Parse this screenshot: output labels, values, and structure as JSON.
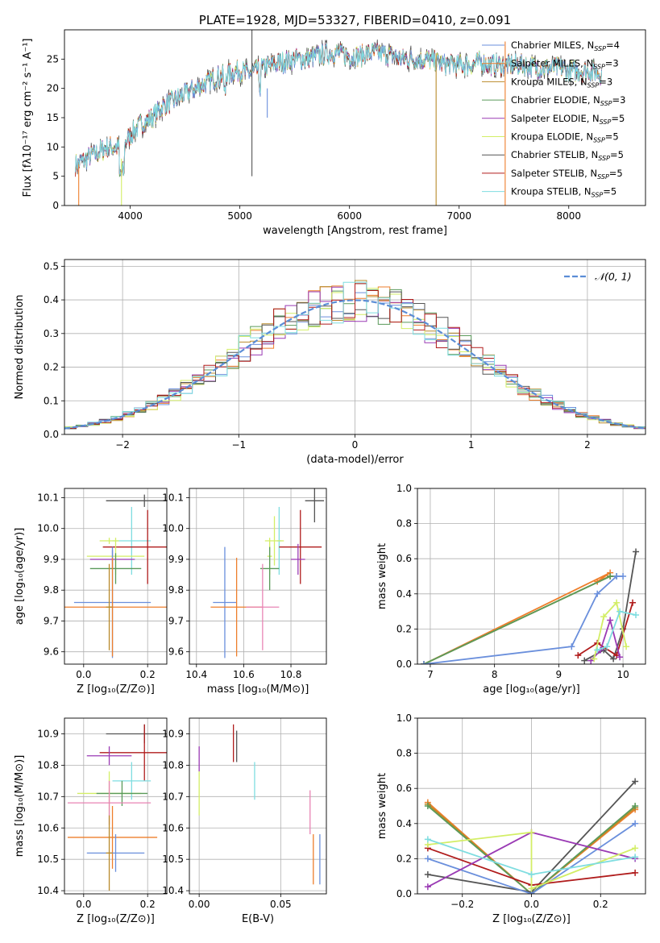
{
  "colors": {
    "chabrier_miles": "#6a8fdc",
    "salpeter_miles": "#ee7e2b",
    "kroupa_miles": "#b98a2a",
    "chabrier_elodie": "#5a9a5a",
    "salpeter_elodie": "#9a3ab4",
    "kroupa_elodie": "#d3ee66",
    "chabrier_stelib": "#555555",
    "salpeter_stelib": "#b01c1c",
    "kroupa_stelib": "#7fdde0",
    "pink": "#e884b4",
    "normal": "#5b8dd6"
  },
  "chart_data": [
    {
      "id": "spectrum",
      "type": "line",
      "title": "PLATE=1928, MJD=53327, FIBERID=0410, z=0.091",
      "xlabel": "wavelength [Angstrom, rest frame]",
      "ylabel": "Flux [fλ10⁻¹⁷ erg cm⁻² s⁻¹ A⁻¹]",
      "xlim": [
        3400,
        8700
      ],
      "ylim": [
        0,
        30
      ],
      "xticks": [
        "4000",
        "5000",
        "6000",
        "7000",
        "8000"
      ],
      "yticks": [
        "0",
        "5",
        "10",
        "15",
        "20",
        "25"
      ],
      "legend": [
        "Chabrier MILES, N_SSP=4",
        "Salpeter MILES, N_SSP=3",
        "Kroupa MILES, N_SSP=3",
        "Chabrier ELODIE, N_SSP=3",
        "Salpeter ELODIE, N_SSP=5",
        "Kroupa ELODIE, N_SSP=5",
        "Chabrier STELIB, N_SSP=5",
        "Salpeter STELIB, N_SSP=5",
        "Kroupa STELIB, N_SSP=5"
      ],
      "legend_position": "top-right",
      "envelope_x": [
        3500,
        3600,
        3700,
        3800,
        3900,
        4000,
        4100,
        4200,
        4300,
        4400,
        4500,
        4600,
        4700,
        4800,
        4900,
        5000,
        5100,
        5200,
        5300,
        5400,
        5500,
        5600,
        5700,
        5800,
        5900,
        6000,
        6100,
        6200,
        6300,
        6400,
        6500,
        6600,
        6700,
        6800,
        6900,
        7000,
        7100,
        7200,
        7300,
        7400,
        7500,
        7600,
        7700,
        7800,
        7900,
        8000,
        8100,
        8200,
        8300
      ],
      "envelope_y": [
        7,
        8,
        9,
        10,
        10,
        12,
        14,
        15,
        17,
        18,
        19,
        20,
        21,
        22,
        22.5,
        23,
        22.5,
        23.5,
        24,
        24.5,
        25,
        25,
        25.5,
        26,
        26,
        25.5,
        25.5,
        26,
        26,
        25.5,
        25,
        25,
        25,
        24.5,
        24,
        24,
        24,
        24.5,
        24,
        24,
        24,
        24,
        23.5,
        23.5,
        23.5,
        23,
        23,
        23,
        22.5
      ]
    },
    {
      "id": "residuals",
      "type": "bar",
      "xlabel": "(data-model)/error",
      "ylabel": "Normed distribution",
      "xlim": [
        -2.5,
        2.5
      ],
      "ylim": [
        0,
        0.52
      ],
      "xticks": [
        "−2",
        "−1",
        "0",
        "1",
        "2"
      ],
      "yticks": [
        "0.0",
        "0.1",
        "0.2",
        "0.3",
        "0.4",
        "0.5"
      ],
      "legend": [
        "𝒩(0, 1)"
      ],
      "legend_position": "top-right",
      "bin_width": 0.1
    },
    {
      "id": "age-vs-z",
      "type": "scatter",
      "xlabel": "Z [log₁₀(Z/Z⊙)]",
      "ylabel": "age  [log₁₀(age/yr)]",
      "xlim": [
        -0.06,
        0.26
      ],
      "ylim": [
        9.56,
        10.13
      ],
      "xticks": [
        "0.0",
        "0.2"
      ],
      "yticks": [
        "9.6",
        "9.7",
        "9.8",
        "9.9",
        "10.0",
        "10.1"
      ],
      "points": [
        {
          "c": "kroupa_stelib",
          "x": 0.15,
          "y": 9.96,
          "xerr": 0.06,
          "yerr": 0.11
        },
        {
          "c": "chabrier_stelib",
          "x": 0.19,
          "y": 10.09,
          "xerr": 0.12,
          "yerr": 0.02
        },
        {
          "c": "salpeter_stelib",
          "x": 0.2,
          "y": 9.94,
          "xerr": 0.14,
          "yerr": 0.12
        },
        {
          "c": "kroupa_elodie",
          "x": 0.08,
          "y": 9.96,
          "xerr": 0.03,
          "yerr": 0.01
        },
        {
          "c": "kroupa_elodie",
          "x": 0.1,
          "y": 9.91,
          "xerr": 0.09,
          "yerr": 0.06
        },
        {
          "c": "salpeter_elodie",
          "x": 0.09,
          "y": 9.9,
          "xerr": 0.07,
          "yerr": 0.03
        },
        {
          "c": "chabrier_elodie",
          "x": 0.1,
          "y": 9.87,
          "xerr": 0.08,
          "yerr": 0.05
        },
        {
          "c": "chabrier_miles",
          "x": 0.09,
          "y": 9.76,
          "xerr": 0.12,
          "yerr": 0.18
        },
        {
          "c": "salpeter_miles",
          "x": 0.09,
          "y": 9.745,
          "xerr": 0.2,
          "yerr": 0.16
        },
        {
          "c": "kroupa_miles",
          "x": 0.08,
          "y": 9.745,
          "xerr": 0.01,
          "yerr": 0.14
        }
      ]
    },
    {
      "id": "age-vs-mass",
      "type": "scatter",
      "xlabel": "mass [log₁₀(M/M⊙)]",
      "ylabel": "",
      "xlim": [
        10.37,
        10.95
      ],
      "ylim": [
        9.56,
        10.13
      ],
      "xticks": [
        "10.4",
        "10.6",
        "10.8"
      ],
      "yticks": [
        "9.6",
        "9.7",
        "9.8",
        "9.9",
        "10.0",
        "10.1"
      ],
      "points": [
        {
          "c": "chabrier_stelib",
          "x": 10.9,
          "y": 10.09,
          "xerr": 0.04,
          "yerr": 0.07
        },
        {
          "c": "kroupa_stelib",
          "x": 10.75,
          "y": 9.96,
          "xerr": 0.01,
          "yerr": 0.11
        },
        {
          "c": "salpeter_stelib",
          "x": 10.84,
          "y": 9.94,
          "xerr": 0.09,
          "yerr": 0.12
        },
        {
          "c": "kroupa_elodie",
          "x": 10.73,
          "y": 9.96,
          "xerr": 0.04,
          "yerr": 0.08
        },
        {
          "c": "kroupa_elodie",
          "x": 10.71,
          "y": 9.91,
          "xerr": 0.01,
          "yerr": 0.06
        },
        {
          "c": "salpeter_elodie",
          "x": 10.83,
          "y": 9.9,
          "xerr": 0.03,
          "yerr": 0.05
        },
        {
          "c": "chabrier_elodie",
          "x": 10.71,
          "y": 9.87,
          "xerr": 0.04,
          "yerr": 0.07
        },
        {
          "c": "chabrier_miles",
          "x": 10.52,
          "y": 9.76,
          "xerr": 0.05,
          "yerr": 0.18
        },
        {
          "c": "salpeter_miles",
          "x": 10.57,
          "y": 9.745,
          "xerr": 0.11,
          "yerr": 0.16
        },
        {
          "c": "pink",
          "x": 10.68,
          "y": 9.745,
          "xerr": 0.07,
          "yerr": 0.14
        }
      ]
    },
    {
      "id": "mass-weight-vs-age",
      "type": "line",
      "xlabel": "age  [log₁₀(age/yr)]",
      "ylabel": "mass weight",
      "xlim": [
        6.8,
        10.35
      ],
      "ylim": [
        0,
        1
      ],
      "xticks": [
        "7",
        "8",
        "9",
        "10"
      ],
      "yticks": [
        "0.0",
        "0.2",
        "0.4",
        "0.6",
        "0.8",
        "1.0"
      ],
      "series": [
        {
          "c": "kroupa_miles",
          "x": [
            6.9,
            9.8
          ],
          "y": [
            0.0,
            0.5
          ]
        },
        {
          "c": "salpeter_miles",
          "x": [
            6.9,
            9.8,
            9.6,
            9.8
          ],
          "y": [
            0.0,
            0.52,
            0.47,
            0.5
          ]
        },
        {
          "c": "chabrier_elodie",
          "x": [
            6.9,
            9.8,
            9.9
          ],
          "y": [
            0.0,
            0.5,
            0.5
          ]
        },
        {
          "c": "chabrier_miles",
          "x": [
            6.9,
            9.2,
            9.6,
            9.9,
            10.0
          ],
          "y": [
            0.0,
            0.1,
            0.4,
            0.5,
            0.5
          ]
        },
        {
          "c": "chabrier_stelib",
          "x": [
            9.4,
            9.7,
            9.85,
            10.0,
            10.2
          ],
          "y": [
            0.02,
            0.08,
            0.03,
            0.2,
            0.64
          ]
        },
        {
          "c": "salpeter_stelib",
          "x": [
            9.3,
            9.6,
            9.9,
            10.15
          ],
          "y": [
            0.05,
            0.12,
            0.05,
            0.35
          ]
        },
        {
          "c": "salpeter_elodie",
          "x": [
            9.5,
            9.65,
            9.8,
            9.95
          ],
          "y": [
            0.02,
            0.08,
            0.25,
            0.04
          ]
        },
        {
          "c": "kroupa_elodie",
          "x": [
            9.55,
            9.7,
            9.9,
            10.05
          ],
          "y": [
            0.03,
            0.27,
            0.35,
            0.1
          ]
        },
        {
          "c": "kroupa_stelib",
          "x": [
            9.6,
            9.75,
            9.95,
            10.2
          ],
          "y": [
            0.08,
            0.1,
            0.3,
            0.28
          ]
        }
      ]
    },
    {
      "id": "mass-vs-z",
      "type": "scatter",
      "xlabel": "Z [log₁₀(Z/Z⊙)]",
      "ylabel": "mass [log₁₀(M/M⊙)]",
      "xlim": [
        -0.06,
        0.26
      ],
      "ylim": [
        10.39,
        10.95
      ],
      "xticks": [
        "0.0",
        "0.2"
      ],
      "yticks": [
        "10.4",
        "10.5",
        "10.6",
        "10.7",
        "10.8",
        "10.9"
      ],
      "points": [
        {
          "c": "chabrier_stelib",
          "x": 0.19,
          "y": 10.9,
          "xerr": 0.12,
          "yerr": 0.03
        },
        {
          "c": "salpeter_stelib",
          "x": 0.19,
          "y": 10.84,
          "xerr": 0.14,
          "yerr": 0.09
        },
        {
          "c": "salpeter_elodie",
          "x": 0.08,
          "y": 10.83,
          "xerr": 0.07,
          "yerr": 0.03
        },
        {
          "c": "kroupa_stelib",
          "x": 0.15,
          "y": 10.75,
          "xerr": 0.06,
          "yerr": 0.06
        },
        {
          "c": "kroupa_elodie",
          "x": 0.08,
          "y": 10.71,
          "xerr": 0.1,
          "yerr": 0.07
        },
        {
          "c": "chabrier_elodie",
          "x": 0.12,
          "y": 10.71,
          "xerr": 0.08,
          "yerr": 0.04
        },
        {
          "c": "pink",
          "x": 0.08,
          "y": 10.68,
          "xerr": 0.13,
          "yerr": 0.07
        },
        {
          "c": "salpeter_miles",
          "x": 0.09,
          "y": 10.57,
          "xerr": 0.14,
          "yerr": 0.1
        },
        {
          "c": "chabrier_miles",
          "x": 0.1,
          "y": 10.52,
          "xerr": 0.09,
          "yerr": 0.06
        },
        {
          "c": "kroupa_miles",
          "x": 0.08,
          "y": 10.52,
          "xerr": 0.01,
          "yerr": 0.12
        }
      ]
    },
    {
      "id": "mass-vs-ebv",
      "type": "scatter",
      "xlabel": "E(B-V)",
      "ylabel": "",
      "xlim": [
        -0.006,
        0.078
      ],
      "ylim": [
        10.39,
        10.95
      ],
      "xticks": [
        "0.00",
        "0.05"
      ],
      "yticks": [
        "10.4",
        "10.5",
        "10.6",
        "10.7",
        "10.8",
        "10.9"
      ],
      "points": [
        {
          "c": "salpeter_stelib",
          "x": 0.021,
          "y": 10.87,
          "xerr": 0,
          "yerr": 0.06
        },
        {
          "c": "chabrier_stelib",
          "x": 0.023,
          "y": 10.86,
          "xerr": 0,
          "yerr": 0.05
        },
        {
          "c": "salpeter_elodie",
          "x": 0.0,
          "y": 10.82,
          "xerr": 0,
          "yerr": 0.04
        },
        {
          "c": "kroupa_stelib",
          "x": 0.034,
          "y": 10.75,
          "xerr": 0,
          "yerr": 0.06
        },
        {
          "c": "kroupa_elodie",
          "x": 0.0,
          "y": 10.71,
          "xerr": 0,
          "yerr": 0.07
        },
        {
          "c": "pink",
          "x": 0.068,
          "y": 10.65,
          "xerr": 0,
          "yerr": 0.07
        },
        {
          "c": "salpeter_miles",
          "x": 0.07,
          "y": 10.5,
          "xerr": 0,
          "yerr": 0.08
        },
        {
          "c": "chabrier_miles",
          "x": 0.074,
          "y": 10.5,
          "xerr": 0,
          "yerr": 0.08
        }
      ]
    },
    {
      "id": "mass-weight-vs-z",
      "type": "line",
      "xlabel": "Z [log₁₀(Z/Z⊙)]",
      "ylabel": "mass weight",
      "xlim": [
        -0.33,
        0.33
      ],
      "ylim": [
        0,
        1
      ],
      "xticks": [
        "−0.2",
        "0.0",
        "0.2"
      ],
      "yticks": [
        "0.0",
        "0.2",
        "0.4",
        "0.6",
        "0.8",
        "1.0"
      ],
      "series": [
        {
          "c": "salpeter_miles",
          "x": [
            -0.3,
            0.0,
            0.3
          ],
          "y": [
            0.52,
            0.0,
            0.48
          ]
        },
        {
          "c": "kroupa_miles",
          "x": [
            -0.3,
            0.0,
            0.3
          ],
          "y": [
            0.51,
            0.0,
            0.49
          ]
        },
        {
          "c": "chabrier_elodie",
          "x": [
            -0.3,
            0.0,
            0.3
          ],
          "y": [
            0.5,
            0.0,
            0.5
          ]
        },
        {
          "c": "chabrier_stelib",
          "x": [
            -0.3,
            0.0,
            0.3
          ],
          "y": [
            0.11,
            0.01,
            0.64
          ]
        },
        {
          "c": "chabrier_miles",
          "x": [
            -0.3,
            0.0,
            0.3
          ],
          "y": [
            0.2,
            0.0,
            0.4
          ]
        },
        {
          "c": "salpeter_stelib",
          "x": [
            -0.3,
            0.0,
            0.3
          ],
          "y": [
            0.26,
            0.05,
            0.12
          ]
        },
        {
          "c": "salpeter_elodie",
          "x": [
            -0.3,
            0.0,
            0.3
          ],
          "y": [
            0.04,
            0.35,
            0.2
          ]
        },
        {
          "c": "kroupa_elodie",
          "x": [
            -0.3,
            0.0,
            0.0,
            0.3
          ],
          "y": [
            0.28,
            0.35,
            0.03,
            0.26
          ]
        },
        {
          "c": "kroupa_stelib",
          "x": [
            -0.3,
            0.0,
            0.3
          ],
          "y": [
            0.31,
            0.11,
            0.21
          ]
        }
      ]
    }
  ]
}
